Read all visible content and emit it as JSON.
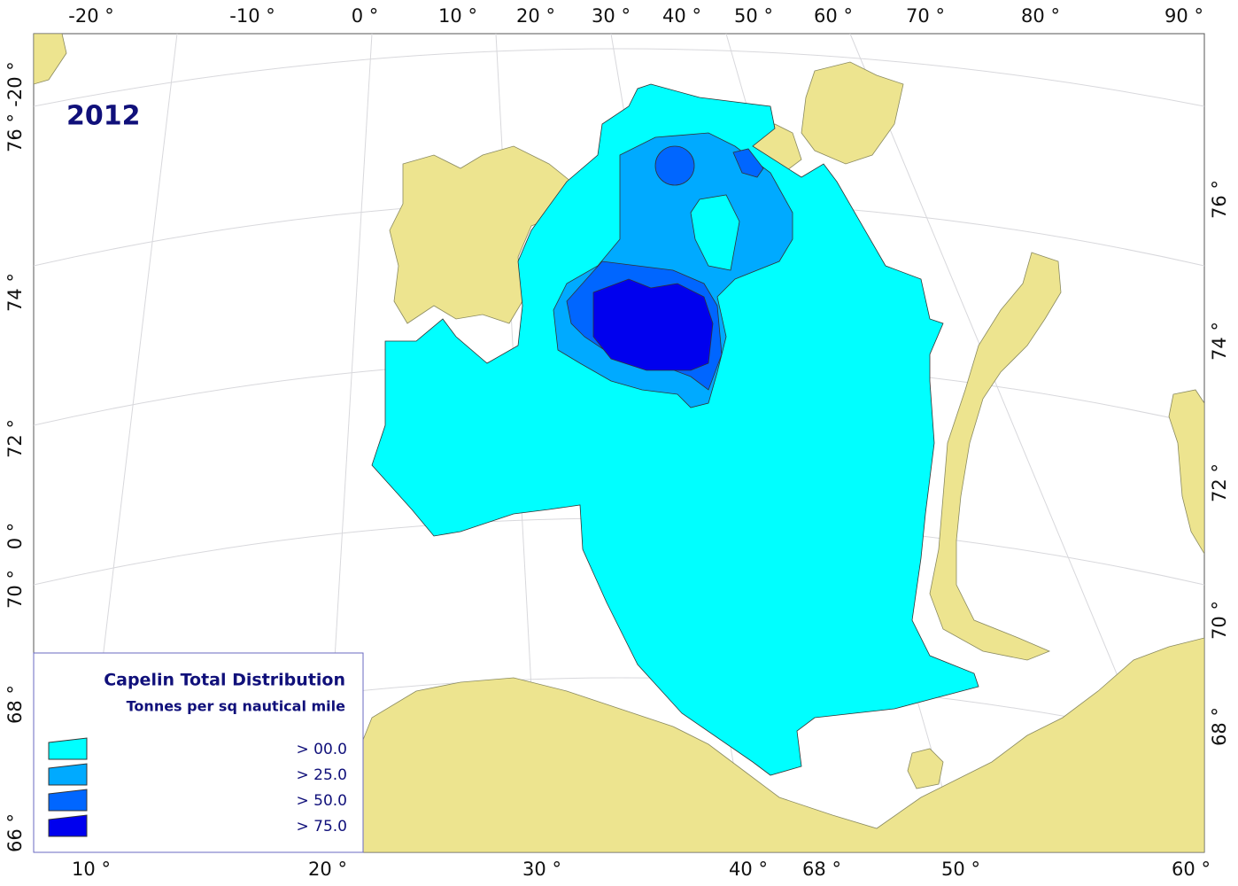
{
  "map": {
    "year": "2012",
    "top_labels": [
      "-20 °",
      "-10 °",
      "0 °",
      "10 °",
      "20 °",
      "30 °",
      "40 °",
      "50 °",
      "60 °",
      "70 °",
      "80 °",
      "90 °"
    ],
    "bottom_labels": [
      "10 °",
      "20 °",
      "30 °",
      "40 °",
      "68 °",
      "50 °",
      "60 °"
    ],
    "left_labels": [
      "-20 °",
      "76 °",
      "74 °",
      "72 °",
      "0 °",
      "70 °",
      "68 °",
      "66 °"
    ],
    "right_labels": [
      "76 °",
      "74 °",
      "72 °",
      "70 °",
      "68 °"
    ],
    "legend": {
      "title": "Capelin Total Distribution",
      "subtitle": "Tonnes per sq nautical mile",
      "items": [
        "> 00.0",
        "> 25.0",
        "> 50.0",
        "> 75.0"
      ]
    }
  }
}
